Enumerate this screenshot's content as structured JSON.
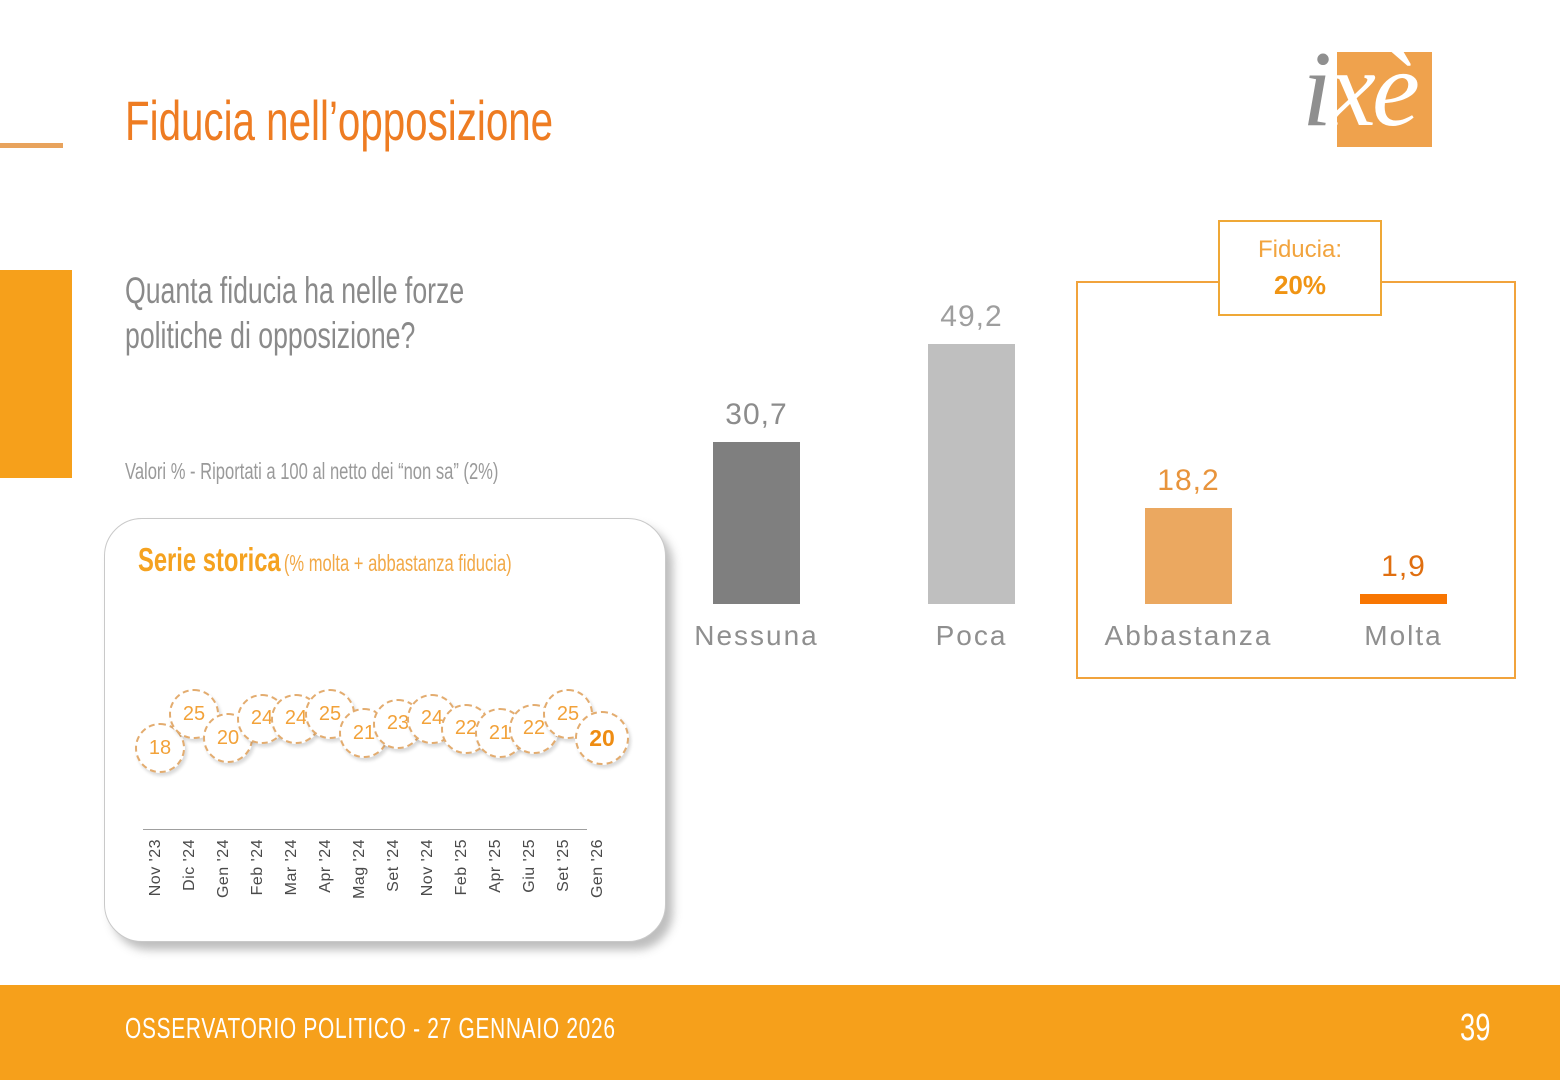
{
  "slide": {
    "title": "Fiducia nell’opposizione",
    "question_lines": [
      "Quanta fiducia ha nelle forze",
      "politiche di opposizione?"
    ],
    "note": "Valori % - Riportati a 100 al netto dei “non sa” (2%)",
    "logo": {
      "gray": "i",
      "white": "xè"
    },
    "footer": {
      "left": "OSSERVATORIO POLITICO - 27 GENNAIO 2026",
      "page": "39"
    }
  },
  "colors": {
    "accent_orange": "#F6A01B",
    "title_orange": "#EE7C22",
    "dash_orange": "#E8A35D",
    "group_box_border": "#F1A33C"
  },
  "chart_data": [
    {
      "type": "bar",
      "title": "Quanta fiducia ha nelle forze politiche di opposizione?",
      "note": "Valori % - Riportati a 100 al netto dei “non sa” (2%)",
      "categories": [
        "Nessuna",
        "Poca",
        "Abbastanza",
        "Molta"
      ],
      "values": [
        30.7,
        49.2,
        18.2,
        1.9
      ],
      "value_labels": [
        "30,7",
        "49,2",
        "18,2",
        "1,9"
      ],
      "bar_colors": [
        "#7F7F7F",
        "#BFBFBF",
        "#EBA860",
        "#F87602"
      ],
      "value_label_colors": [
        "#8C8C8C",
        "#9E9E9E",
        "#E8943C",
        "#E06F10"
      ],
      "ylim": [
        0,
        55
      ],
      "grid": false,
      "annotation": {
        "label": "Fiducia:",
        "value": "20%",
        "covers": [
          "Abbastanza",
          "Molta"
        ]
      }
    },
    {
      "type": "line",
      "title": "Serie storica",
      "subtitle": "(% molta + abbastanza fiducia)",
      "x": [
        "Nov '23",
        "Dic '24",
        "Gen '24",
        "Feb '24",
        "Mar '24",
        "Apr '24",
        "Mag '24",
        "Set '24",
        "Nov '24",
        "Feb '25",
        "Apr '25",
        "Giu '25",
        "Set '25",
        "Gen '26"
      ],
      "values": [
        18,
        25,
        20,
        24,
        24,
        25,
        21,
        23,
        24,
        22,
        21,
        22,
        25,
        20
      ],
      "ylim": [
        17,
        26
      ],
      "highlight_last": true
    }
  ]
}
